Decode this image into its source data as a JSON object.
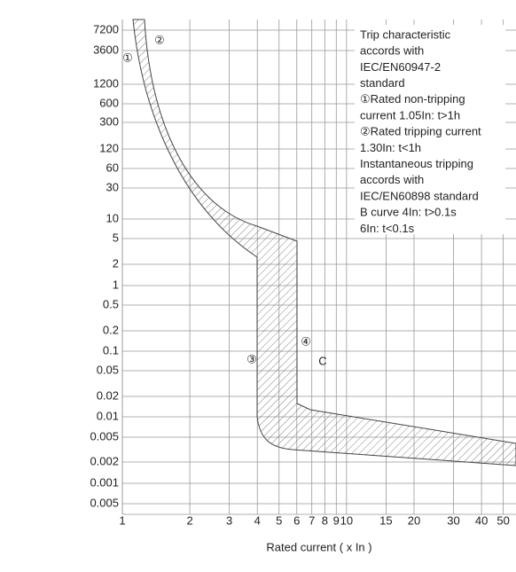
{
  "chart_data": {
    "type": "trip-curve",
    "x_label": "Rated current ( x In )",
    "xlim": [
      1,
      57
    ],
    "log_x": true,
    "xticks": [
      1,
      2,
      3,
      4,
      5,
      6,
      7,
      8,
      9,
      10,
      15,
      20,
      30,
      40,
      50
    ],
    "y_labels": [
      "7200",
      "3600",
      "1200",
      "600",
      "300",
      "120",
      "60",
      "30",
      "10",
      "5",
      "2",
      "1",
      "0.5",
      "0.2",
      "0.1",
      "0.05",
      "0.02",
      "0.01",
      "0.005",
      "0.002",
      "0.001",
      "0.005"
    ],
    "notes": [
      "Trip characteristic",
      "accords with",
      "IEC/EN60947-2",
      "standard",
      "①Rated non-tripping",
      "current 1.05In: t>1h",
      "②Rated tripping current",
      "1.30In: t<1h",
      "Instantaneous tripping",
      "accords with",
      "IEC/EN60898 standard",
      "B curve 4In: t>0.1s",
      "6In: t<0.1s"
    ],
    "markers": [
      "①",
      "②",
      "③",
      "④",
      "C"
    ]
  }
}
